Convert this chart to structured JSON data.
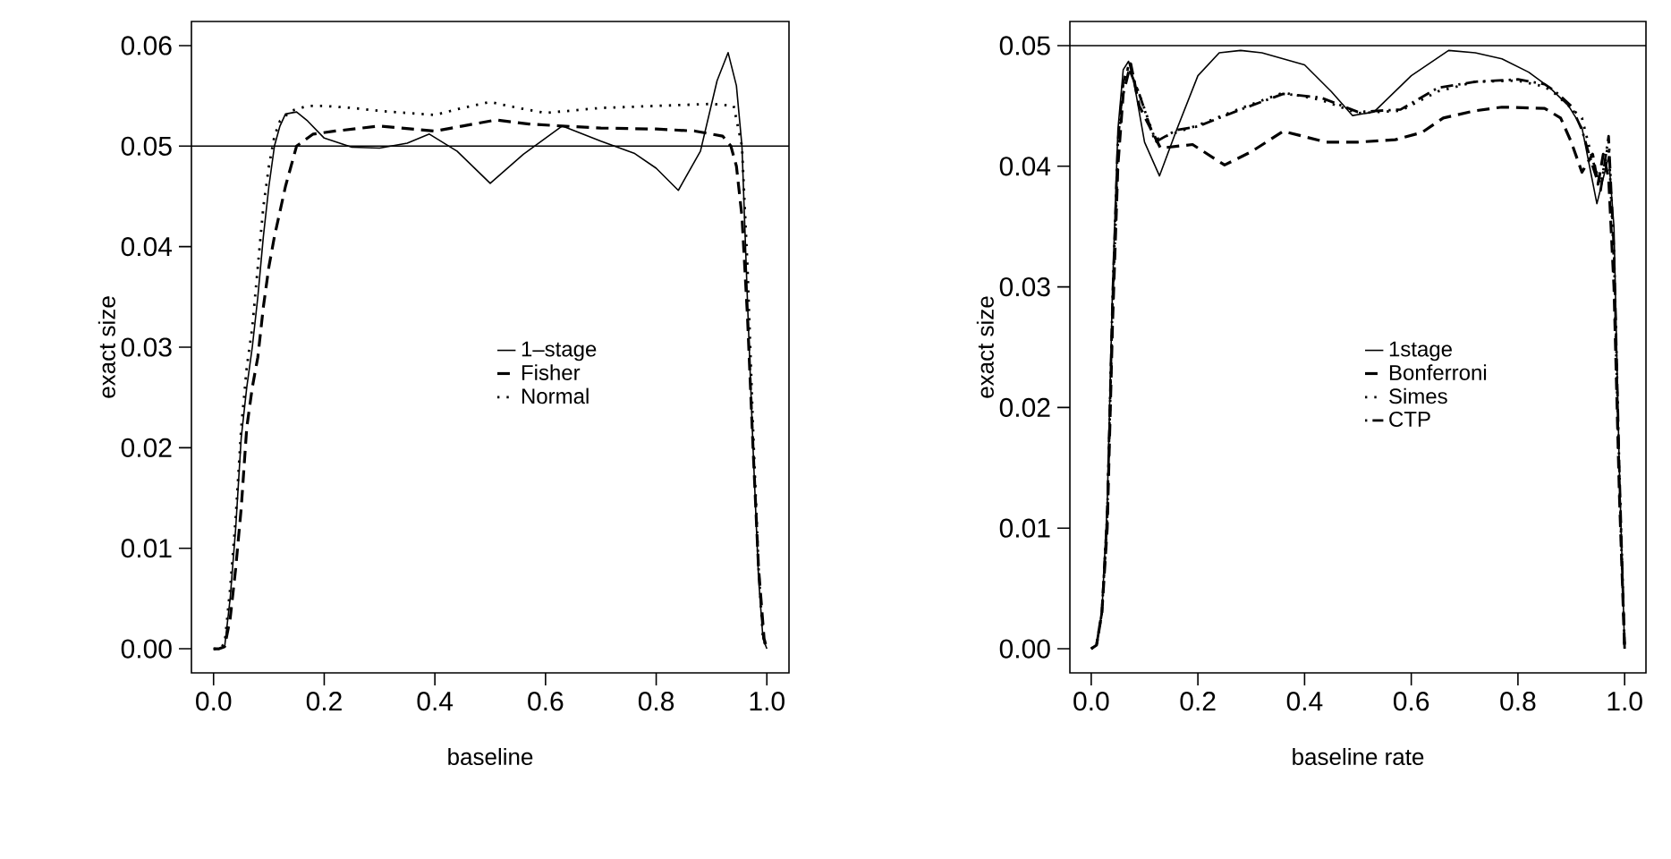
{
  "chart_data": [
    {
      "type": "line",
      "xlabel": "baseline",
      "ylabel": "exact size",
      "legend": "center",
      "xlim": [
        -0.04,
        1.04
      ],
      "ylim": [
        -0.0024,
        0.0624
      ],
      "xticks": [
        {
          "value": 0,
          "label": "0.0"
        },
        {
          "value": 0.2,
          "label": "0.2"
        },
        {
          "value": 0.4,
          "label": "0.4"
        },
        {
          "value": 0.6,
          "label": "0.6"
        },
        {
          "value": 0.8,
          "label": "0.8"
        },
        {
          "value": 1,
          "label": "1.0"
        }
      ],
      "yticks": [
        {
          "value": 0,
          "label": "0.00"
        },
        {
          "value": 0.01,
          "label": "0.01"
        },
        {
          "value": 0.02,
          "label": "0.02"
        },
        {
          "value": 0.03,
          "label": "0.03"
        },
        {
          "value": 0.04,
          "label": "0.04"
        },
        {
          "value": 0.05,
          "label": "0.05"
        },
        {
          "value": 0.06,
          "label": "0.06"
        }
      ],
      "ref_lines": [
        {
          "axis": "y",
          "value": 0.05,
          "color": "#000000"
        }
      ],
      "series": [
        {
          "name": "1–stage",
          "color": "#000000",
          "line_style": "solid",
          "x": [
            0,
            0.01,
            0.02,
            0.03,
            0.04,
            0.05,
            0.06,
            0.07,
            0.08,
            0.09,
            0.1,
            0.11,
            0.12,
            0.13,
            0.15,
            0.17,
            0.2,
            0.25,
            0.3,
            0.35,
            0.39,
            0.44,
            0.5,
            0.56,
            0.63,
            0.7,
            0.76,
            0.8,
            0.84,
            0.88,
            0.91,
            0.93,
            0.945,
            0.955,
            0.965,
            0.975,
            0.985,
            0.993,
            1.0
          ],
          "values": [
            0,
            0,
            0.0002,
            0.005,
            0.012,
            0.021,
            0.026,
            0.03,
            0.035,
            0.041,
            0.046,
            0.05,
            0.052,
            0.0532,
            0.0534,
            0.0525,
            0.0508,
            0.0499,
            0.0498,
            0.0503,
            0.0512,
            0.0495,
            0.0463,
            0.0492,
            0.052,
            0.0505,
            0.0493,
            0.0478,
            0.0456,
            0.0495,
            0.0565,
            0.0593,
            0.056,
            0.05,
            0.0345,
            0.02,
            0.007,
            0.001,
            0
          ]
        },
        {
          "name": "Fisher",
          "color": "#000000",
          "line_style": "dashed",
          "x": [
            0,
            0.01,
            0.02,
            0.03,
            0.04,
            0.05,
            0.06,
            0.07,
            0.08,
            0.09,
            0.1,
            0.11,
            0.13,
            0.15,
            0.18,
            0.22,
            0.3,
            0.4,
            0.45,
            0.51,
            0.57,
            0.63,
            0.7,
            0.8,
            0.87,
            0.92,
            0.935,
            0.945,
            0.955,
            0.965,
            0.975,
            0.985,
            0.995,
            1.0
          ],
          "values": [
            0,
            0,
            0.0002,
            0.003,
            0.008,
            0.014,
            0.022,
            0.026,
            0.029,
            0.034,
            0.038,
            0.041,
            0.046,
            0.05,
            0.0512,
            0.0515,
            0.052,
            0.0515,
            0.052,
            0.0526,
            0.0522,
            0.052,
            0.0518,
            0.0517,
            0.0515,
            0.051,
            0.05,
            0.048,
            0.043,
            0.033,
            0.02,
            0.008,
            0.001,
            0
          ]
        },
        {
          "name": "Normal",
          "color": "#000000",
          "line_style": "dotted",
          "x": [
            0,
            0.01,
            0.02,
            0.03,
            0.04,
            0.05,
            0.06,
            0.07,
            0.08,
            0.09,
            0.1,
            0.11,
            0.12,
            0.14,
            0.17,
            0.2,
            0.25,
            0.3,
            0.35,
            0.4,
            0.45,
            0.5,
            0.55,
            0.6,
            0.7,
            0.8,
            0.9,
            0.94,
            0.955,
            0.965,
            0.975,
            0.985,
            0.993,
            1.0
          ],
          "values": [
            0,
            0,
            0.0005,
            0.006,
            0.013,
            0.022,
            0.028,
            0.032,
            0.038,
            0.044,
            0.048,
            0.051,
            0.0525,
            0.0535,
            0.054,
            0.054,
            0.0538,
            0.0535,
            0.0533,
            0.0531,
            0.0538,
            0.0544,
            0.0538,
            0.0533,
            0.0538,
            0.054,
            0.0542,
            0.054,
            0.05,
            0.038,
            0.022,
            0.008,
            0.001,
            0
          ]
        }
      ]
    },
    {
      "type": "line",
      "xlabel": "baseline rate",
      "ylabel": "exact size",
      "legend": "center",
      "xlim": [
        -0.04,
        1.04
      ],
      "ylim": [
        -0.002,
        0.052
      ],
      "xticks": [
        {
          "value": 0,
          "label": "0.0"
        },
        {
          "value": 0.2,
          "label": "0.2"
        },
        {
          "value": 0.4,
          "label": "0.4"
        },
        {
          "value": 0.6,
          "label": "0.6"
        },
        {
          "value": 0.8,
          "label": "0.8"
        },
        {
          "value": 1,
          "label": "1.0"
        }
      ],
      "yticks": [
        {
          "value": 0,
          "label": "0.00"
        },
        {
          "value": 0.01,
          "label": "0.01"
        },
        {
          "value": 0.02,
          "label": "0.02"
        },
        {
          "value": 0.03,
          "label": "0.03"
        },
        {
          "value": 0.04,
          "label": "0.04"
        },
        {
          "value": 0.05,
          "label": "0.05"
        }
      ],
      "ref_lines": [
        {
          "axis": "y",
          "value": 0.05,
          "color": "#000000"
        }
      ],
      "series": [
        {
          "name": "1stage",
          "color": "#000000",
          "line_style": "solid",
          "x": [
            0,
            0.01,
            0.02,
            0.03,
            0.04,
            0.05,
            0.06,
            0.07,
            0.08,
            0.1,
            0.128,
            0.16,
            0.2,
            0.24,
            0.28,
            0.32,
            0.4,
            0.45,
            0.49,
            0.53,
            0.6,
            0.67,
            0.72,
            0.77,
            0.82,
            0.86,
            0.895,
            0.92,
            0.948,
            0.97,
            0.98,
            0.99,
            1.0
          ],
          "values": [
            0,
            0.0003,
            0.003,
            0.012,
            0.03,
            0.043,
            0.048,
            0.0487,
            0.047,
            0.042,
            0.0392,
            0.043,
            0.0475,
            0.0494,
            0.0496,
            0.0494,
            0.0484,
            0.0462,
            0.0442,
            0.0445,
            0.0475,
            0.0496,
            0.0494,
            0.0489,
            0.0478,
            0.0465,
            0.045,
            0.0432,
            0.0369,
            0.0408,
            0.035,
            0.015,
            0
          ]
        },
        {
          "name": "Bonferroni",
          "color": "#000000",
          "line_style": "dashed",
          "x": [
            0,
            0.01,
            0.02,
            0.03,
            0.04,
            0.05,
            0.06,
            0.074,
            0.09,
            0.13,
            0.19,
            0.25,
            0.3,
            0.36,
            0.44,
            0.5,
            0.57,
            0.62,
            0.66,
            0.72,
            0.77,
            0.85,
            0.88,
            0.9,
            0.92,
            0.94,
            0.95,
            0.96,
            0.97,
            0.98,
            0.99,
            1.0
          ],
          "values": [
            0,
            0.0003,
            0.003,
            0.01,
            0.027,
            0.04,
            0.046,
            0.0485,
            0.045,
            0.0415,
            0.0418,
            0.0401,
            0.0412,
            0.0429,
            0.042,
            0.042,
            0.0422,
            0.0428,
            0.044,
            0.0446,
            0.0449,
            0.0448,
            0.044,
            0.042,
            0.0395,
            0.041,
            0.0385,
            0.041,
            0.039,
            0.03,
            0.013,
            0
          ]
        },
        {
          "name": "Simes",
          "color": "#000000",
          "line_style": "dotted",
          "x": [
            0,
            0.01,
            0.02,
            0.03,
            0.04,
            0.05,
            0.06,
            0.07,
            0.09,
            0.12,
            0.16,
            0.2,
            0.28,
            0.36,
            0.43,
            0.5,
            0.58,
            0.65,
            0.72,
            0.8,
            0.85,
            0.87,
            0.9,
            0.92,
            0.94,
            0.955,
            0.97,
            0.98,
            0.99,
            1.0
          ],
          "values": [
            0,
            0.0003,
            0.003,
            0.011,
            0.028,
            0.041,
            0.047,
            0.0483,
            0.046,
            0.0422,
            0.0428,
            0.0434,
            0.0448,
            0.0461,
            0.0455,
            0.0444,
            0.0446,
            0.0462,
            0.047,
            0.0471,
            0.0466,
            0.046,
            0.0448,
            0.044,
            0.0405,
            0.0385,
            0.042,
            0.032,
            0.014,
            0
          ]
        },
        {
          "name": "CTP",
          "color": "#000000",
          "line_style": "dashdot",
          "x": [
            0,
            0.01,
            0.02,
            0.03,
            0.04,
            0.05,
            0.06,
            0.07,
            0.09,
            0.12,
            0.16,
            0.2,
            0.28,
            0.36,
            0.43,
            0.5,
            0.58,
            0.65,
            0.72,
            0.8,
            0.85,
            0.87,
            0.9,
            0.92,
            0.94,
            0.955,
            0.97,
            0.98,
            0.99,
            1.0
          ],
          "values": [
            0,
            0.0003,
            0.003,
            0.011,
            0.029,
            0.042,
            0.047,
            0.0482,
            0.046,
            0.042,
            0.043,
            0.0433,
            0.0447,
            0.046,
            0.0457,
            0.0445,
            0.0447,
            0.0465,
            0.047,
            0.0472,
            0.0468,
            0.0462,
            0.045,
            0.043,
            0.04,
            0.038,
            0.0425,
            0.033,
            0.015,
            0
          ]
        }
      ]
    }
  ]
}
